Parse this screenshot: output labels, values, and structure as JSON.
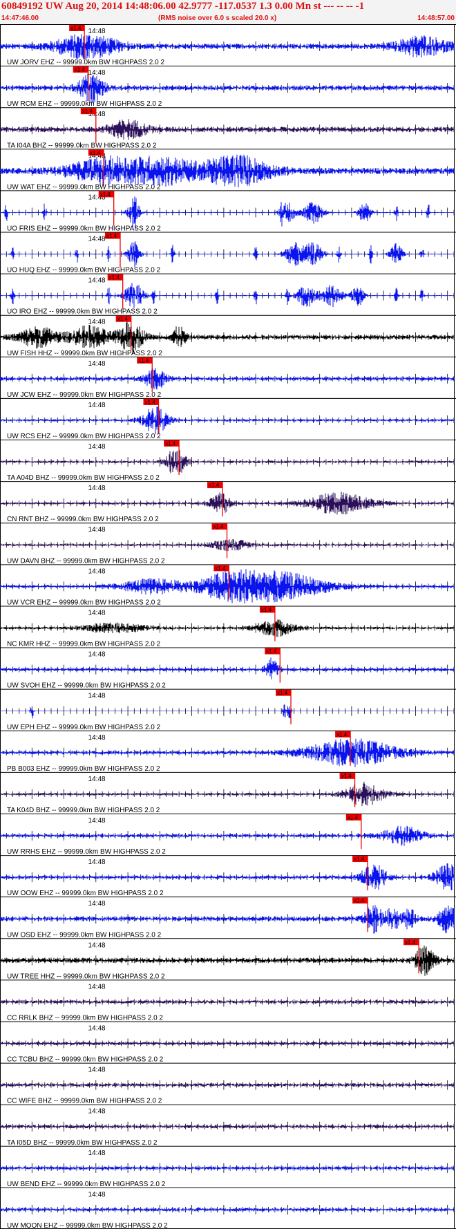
{
  "header": {
    "title": "60849192 UW Aug 20, 2014 14:48:06.00   42.9777 -117.0537  1.3 0.00 Mn st --- -- --   -1",
    "subtitle": "(RMS noise over 6.0 s scaled 20.0 x)",
    "time_start": "14:47:46.00",
    "time_end": "14:48:57.00"
  },
  "colors": {
    "header_text": "#dd1111",
    "blue_trace": "#0a14ee",
    "black_trace": "#000000",
    "purple_trace": "#2a0f5a",
    "pick": "#ee0000",
    "grid": "#000000"
  },
  "chart_data": {
    "type": "line",
    "title": "60849192 UW Aug 20, 2014 14:48:06.00   42.9777 -117.0537  1.3 0.00 Mn st --- -- --   -1",
    "subtitle": "(RMS noise over 6.0 s scaled 20.0 x)",
    "x_range": [
      "14:47:46.00",
      "14:48:57.00"
    ],
    "x_range_seconds": [
      0,
      71
    ],
    "minute_label": "14:48",
    "minute_label_second": 14,
    "pick_label": "x1.4",
    "channels": [
      {
        "label": "UW JORV EHZ -- 99999.0km BW  HIGHPASS  2.0  2",
        "color": "blue",
        "pick_s": 13.2,
        "amp": 0.28,
        "bursts": [
          [
            13.5,
            5,
            1.3
          ],
          [
            66,
            4,
            1.1
          ]
        ]
      },
      {
        "label": "UW RCM EHZ -- 99999.0km BW  HIGHPASS  2.0  2",
        "color": "blue",
        "pick_s": 13.8,
        "amp": 0.25,
        "bursts": [
          [
            14.2,
            2,
            1.6
          ]
        ]
      },
      {
        "label": "TA I04A BHZ -- 99999.0km BW  HIGHPASS  2.0  2",
        "color": "purple",
        "pick_s": 15.0,
        "amp": 0.28,
        "bursts": [
          [
            20,
            3,
            1
          ]
        ]
      },
      {
        "label": "UW WAT EHZ -- 99999.0km BW  HIGHPASS  2.0  2",
        "color": "blue",
        "pick_s": 16.2,
        "amp": 0.35,
        "bursts": [
          [
            17,
            6,
            1.4
          ],
          [
            26,
            5,
            1.3
          ],
          [
            37,
            5,
            1.7
          ]
        ]
      },
      {
        "label": "UO FRIS EHZ -- 99999.0km BW  HIGHPASS  2.0  2",
        "color": "blue",
        "pick_s": 17.8,
        "amp": 0.06,
        "bursts": [
          [
            21,
            1,
            1.5
          ],
          [
            45,
            1.2,
            1.2
          ],
          [
            49,
            1.5,
            1.3
          ],
          [
            57,
            1,
            1.2
          ]
        ],
        "spikes": [
          1,
          7,
          21,
          44,
          62,
          67
        ]
      },
      {
        "label": "UO HUQ EHZ -- 99999.0km BW  HIGHPASS  2.0  2",
        "color": "blue",
        "pick_s": 18.8,
        "amp": 0.06,
        "bursts": [
          [
            21,
            1,
            1.5
          ],
          [
            46,
            1.5,
            1.3
          ],
          [
            49,
            1.5,
            1.3
          ],
          [
            62,
            1,
            1.2
          ]
        ],
        "spikes": [
          2,
          12,
          17,
          27,
          40,
          53,
          58,
          66
        ]
      },
      {
        "label": "UO IRO EHZ -- 99999.0km BW  HIGHPASS  2.0  2",
        "color": "blue",
        "pick_s": 19.2,
        "amp": 0.06,
        "bursts": [
          [
            21,
            1.5,
            1.5
          ],
          [
            48,
            1.5,
            1.3
          ],
          [
            52,
            1.5,
            1.3
          ],
          [
            56,
            1,
            1.2
          ]
        ],
        "spikes": [
          2,
          17,
          24,
          34,
          40,
          45,
          62,
          66
        ]
      },
      {
        "label": "UW FISH HHZ -- 99999.0km BW  HIGHPASS  2.0  2",
        "color": "black",
        "pick_s": 20.5,
        "amp": 0.25,
        "bursts": [
          [
            6,
            3,
            1.1
          ],
          [
            14,
            3,
            1.2
          ],
          [
            20.5,
            2,
            1.7
          ],
          [
            28,
            1,
            1.2
          ]
        ]
      },
      {
        "label": "UW JCW EHZ -- 99999.0km BW  HIGHPASS  2.0  2",
        "color": "blue",
        "pick_s": 23.8,
        "amp": 0.22,
        "bursts": [
          [
            24.3,
            1.5,
            1.3
          ]
        ]
      },
      {
        "label": "UW RCS EHZ -- 99999.0km BW  HIGHPASS  2.0  2",
        "color": "blue",
        "pick_s": 24.8,
        "amp": 0.15,
        "bursts": [
          [
            24.3,
            2,
            1.5
          ]
        ]
      },
      {
        "label": "TA A04D BHZ -- 99999.0km BW  HIGHPASS  2.0  2",
        "color": "purple",
        "pick_s": 28.0,
        "amp": 0.15,
        "bursts": [
          [
            27.5,
            1.5,
            1.6
          ]
        ]
      },
      {
        "label": "CN RNT BHZ -- 99999.0km BW  HIGHPASS  2.0  2",
        "color": "purple",
        "pick_s": 34.8,
        "amp": 0.15,
        "bursts": [
          [
            34.5,
            1.5,
            1.4
          ],
          [
            53,
            5,
            1.2
          ]
        ]
      },
      {
        "label": "UW DAVN BHZ -- 99999.0km BW  HIGHPASS  2.0  2",
        "color": "purple",
        "pick_s": 35.5,
        "amp": 0.15,
        "bursts": [
          [
            36,
            3,
            0.6
          ]
        ]
      },
      {
        "label": "UW VCR EHZ -- 99999.0km BW  HIGHPASS  2.0  2",
        "color": "blue",
        "pick_s": 35.8,
        "amp": 0.18,
        "bursts": [
          [
            24,
            5,
            0.8
          ],
          [
            36,
            5,
            1.4
          ],
          [
            44,
            7,
            1.5
          ]
        ]
      },
      {
        "label": "NC KMR HHZ -- 99999.0km BW  HIGHPASS  2.0  2",
        "color": "black",
        "pick_s": 43.0,
        "amp": 0.15,
        "bursts": [
          [
            18,
            5,
            0.5
          ],
          [
            43,
            3,
            0.9
          ]
        ]
      },
      {
        "label": "UW SVOH EHZ -- 99999.0km BW  HIGHPASS  2.0  2",
        "color": "blue",
        "pick_s": 43.8,
        "amp": 0.2,
        "bursts": [
          [
            42.5,
            1,
            1.2
          ]
        ]
      },
      {
        "label": "UW EPH EHZ -- 99999.0km BW  HIGHPASS  2.0  2",
        "color": "blue",
        "pick_s": 45.5,
        "amp": 0.02,
        "bursts": [],
        "spikes": [
          5,
          44.5,
          45.3
        ]
      },
      {
        "label": "PB B003 EHZ -- 99999.0km BW  HIGHPASS  2.0  2",
        "color": "blue",
        "pick_s": 54.8,
        "amp": 0.2,
        "bursts": [
          [
            55,
            7,
            1.5
          ]
        ]
      },
      {
        "label": "TA K04D BHZ -- 99999.0km BW  HIGHPASS  2.0  2",
        "color": "purple",
        "pick_s": 55.5,
        "amp": 0.15,
        "bursts": [
          [
            57,
            3,
            1.3
          ]
        ]
      },
      {
        "label": "UW RRHS EHZ -- 99999.0km BW  HIGHPASS  2.0  2",
        "color": "blue",
        "pick_s": 56.5,
        "amp": 0.2,
        "bursts": [
          [
            63,
            3,
            1
          ]
        ]
      },
      {
        "label": "UW OOW EHZ -- 99999.0km BW  HIGHPASS  2.0  2",
        "color": "blue",
        "pick_s": 57.5,
        "amp": 0.2,
        "bursts": [
          [
            58.5,
            2,
            1.4
          ],
          [
            70,
            2,
            1.5
          ]
        ]
      },
      {
        "label": "UW OSD EHZ -- 99999.0km BW  HIGHPASS  2.0  2",
        "color": "blue",
        "pick_s": 57.5,
        "amp": 0.25,
        "bursts": [
          [
            58.5,
            1.5,
            1.5
          ],
          [
            61.5,
            1,
            1.3
          ],
          [
            64,
            1,
            1.1
          ],
          [
            70,
            1.5,
            1.5
          ]
        ]
      },
      {
        "label": "UW TREE HHZ -- 99999.0km BW  HIGHPASS  2.0  2",
        "color": "black",
        "pick_s": 65.5,
        "amp": 0.28,
        "bursts": [
          [
            66.5,
            1.5,
            1.6
          ]
        ]
      },
      {
        "label": "CC RRLK BHZ -- 99999.0km BW  HIGHPASS  2.0  2",
        "color": "purple",
        "pick_s": null,
        "amp": 0.2,
        "bursts": []
      },
      {
        "label": "CC TCBU BHZ -- 99999.0km BW  HIGHPASS  2.0  2",
        "color": "purple",
        "pick_s": null,
        "amp": 0.2,
        "bursts": []
      },
      {
        "label": "CC WIFE BHZ -- 99999.0km BW  HIGHPASS  2.0  2",
        "color": "purple",
        "pick_s": null,
        "amp": 0.2,
        "bursts": []
      },
      {
        "label": "TA I05D BHZ -- 99999.0km BW  HIGHPASS  2.0  2",
        "color": "purple",
        "pick_s": null,
        "amp": 0.2,
        "bursts": []
      },
      {
        "label": "UW BEND EHZ -- 99999.0km BW  HIGHPASS  2.0  2",
        "color": "blue",
        "pick_s": null,
        "amp": 0.2,
        "bursts": []
      },
      {
        "label": "UW MOON EHZ -- 99999.0km BW  HIGHPASS  2.0  2",
        "color": "blue",
        "pick_s": null,
        "amp": 0.2,
        "bursts": []
      }
    ]
  }
}
